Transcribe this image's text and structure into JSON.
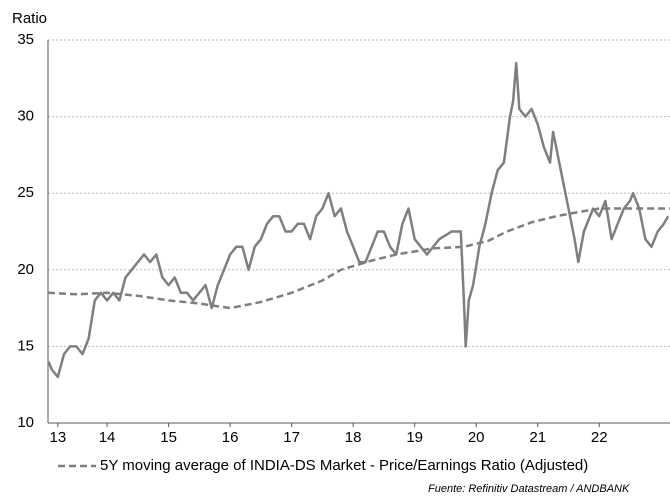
{
  "chart_data": {
    "type": "line",
    "ylabel": "Ratio",
    "legend_label": "5Y moving average of INDIA-DS Market - Price/Earnings Ratio (Adjusted)",
    "source": "Fuente: Refinitiv Datastream / ANDBANK",
    "xlim": [
      13.54,
      23.65
    ],
    "xticks": [
      {
        "value": 13.7,
        "label": "13"
      },
      {
        "value": 14.5,
        "label": "14"
      },
      {
        "value": 15.5,
        "label": "15"
      },
      {
        "value": 16.5,
        "label": "16"
      },
      {
        "value": 17.5,
        "label": "17"
      },
      {
        "value": 18.5,
        "label": "18"
      },
      {
        "value": 19.5,
        "label": "19"
      },
      {
        "value": 20.5,
        "label": "20"
      },
      {
        "value": 21.5,
        "label": "21"
      },
      {
        "value": 22.5,
        "label": "22"
      }
    ],
    "ylim": [
      10,
      35
    ],
    "yticks": [
      10,
      15,
      20,
      25,
      30,
      35
    ],
    "grid": true,
    "series": [
      {
        "color": "#7f7f7f",
        "dash": false,
        "x": [
          13.55,
          13.6,
          13.7,
          13.8,
          13.9,
          14.0,
          14.1,
          14.2,
          14.3,
          14.4,
          14.5,
          14.6,
          14.7,
          14.8,
          14.9,
          15.0,
          15.1,
          15.2,
          15.3,
          15.4,
          15.5,
          15.6,
          15.7,
          15.8,
          15.9,
          16.0,
          16.1,
          16.2,
          16.3,
          16.4,
          16.5,
          16.6,
          16.7,
          16.8,
          16.9,
          17.0,
          17.1,
          17.2,
          17.3,
          17.4,
          17.5,
          17.6,
          17.7,
          17.8,
          17.9,
          18.0,
          18.1,
          18.2,
          18.3,
          18.4,
          18.5,
          18.6,
          18.7,
          18.8,
          18.9,
          19.0,
          19.1,
          19.2,
          19.3,
          19.4,
          19.5,
          19.7,
          19.9,
          20.1,
          20.25,
          20.3,
          20.33,
          20.38,
          20.45,
          20.55,
          20.65,
          20.75,
          20.85,
          20.95,
          21.05,
          21.1,
          21.15,
          21.2,
          21.3,
          21.4,
          21.5,
          21.6,
          21.7,
          21.75,
          21.8,
          21.9,
          22.0,
          22.1,
          22.16,
          22.25,
          22.4,
          22.5,
          22.6,
          22.7,
          22.8,
          22.9,
          23.0,
          23.05,
          23.15,
          23.25,
          23.35,
          23.45,
          23.55,
          23.62
        ],
        "values": [
          14,
          13.5,
          13,
          14.5,
          15,
          15,
          14.5,
          15.5,
          18,
          18.5,
          18,
          18.5,
          18,
          19.5,
          20,
          20.5,
          21,
          20.5,
          21,
          19.5,
          19,
          19.5,
          18.5,
          18.5,
          18,
          18.5,
          19,
          17.5,
          19,
          20,
          21,
          21.5,
          21.5,
          20,
          21.5,
          22,
          23,
          23.5,
          23.5,
          22.5,
          22.5,
          23,
          23,
          22,
          23.5,
          24,
          25,
          23.5,
          24,
          22.5,
          21.5,
          20.5,
          20.5,
          21.5,
          22.5,
          22.5,
          21.5,
          21,
          23,
          24,
          22,
          21,
          22,
          22.5,
          22.5,
          18,
          15,
          18,
          19,
          21.5,
          23,
          25,
          26.5,
          27,
          30,
          31,
          33.5,
          30.5,
          30,
          30.5,
          29.5,
          28,
          27,
          29,
          28,
          26,
          24,
          22,
          20.5,
          22.5,
          24,
          23.5,
          24.5,
          22,
          23,
          24,
          24.5,
          25,
          24,
          22,
          21.5,
          22.5,
          23,
          23.5
        ]
      },
      {
        "color": "#7f7f7f",
        "dash": true,
        "x": [
          13.54,
          14.0,
          14.5,
          15.0,
          15.5,
          16.0,
          16.5,
          17.0,
          17.5,
          18.0,
          18.3,
          18.8,
          19.2,
          19.8,
          20.3,
          20.7,
          21.0,
          21.4,
          21.8,
          22.2,
          22.5,
          23.0,
          23.65
        ],
        "values": [
          18.5,
          18.4,
          18.5,
          18.3,
          18.0,
          17.8,
          17.5,
          17.9,
          18.5,
          19.3,
          20.0,
          20.6,
          21.0,
          21.4,
          21.5,
          21.9,
          22.5,
          23.1,
          23.5,
          23.8,
          24.0,
          24.0,
          24.0
        ]
      }
    ]
  }
}
